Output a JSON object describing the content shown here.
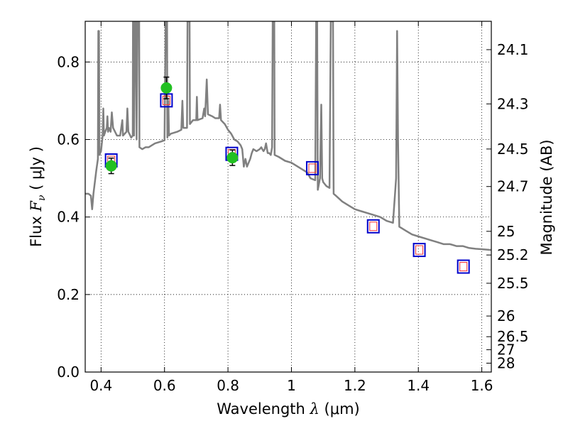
{
  "chart_data": {
    "type": "scatter",
    "xlabel_prefix": "Wavelength",
    "xlabel_symbol": "λ",
    "xlabel_units": "(μm)",
    "ylabel_prefix": "Flux",
    "ylabel_symbol": "F",
    "ylabel_sub": "ν",
    "ylabel_units": "( μJy )",
    "y2label": "Magnitude (AB)",
    "xlim": [
      0.35,
      1.63
    ],
    "ylim": [
      0.0,
      0.905
    ],
    "x_ticks": [
      {
        "value": 0.4,
        "label": "0.4"
      },
      {
        "value": 0.6,
        "label": "0.6"
      },
      {
        "value": 0.8,
        "label": "0.8"
      },
      {
        "value": 1.0,
        "label": "1"
      },
      {
        "value": 1.2,
        "label": "1.2"
      },
      {
        "value": 1.4,
        "label": "1.4"
      },
      {
        "value": 1.6,
        "label": "1.6"
      }
    ],
    "y_ticks": [
      {
        "value": 0.0,
        "label": "0.0"
      },
      {
        "value": 0.2,
        "label": "0.2"
      },
      {
        "value": 0.4,
        "label": "0.4"
      },
      {
        "value": 0.6,
        "label": "0.6"
      },
      {
        "value": 0.8,
        "label": "0.8"
      }
    ],
    "mag_ticks": [
      {
        "value": 24.1,
        "label": "24.1"
      },
      {
        "value": 24.3,
        "label": "24.3"
      },
      {
        "value": 24.5,
        "label": "24.5"
      },
      {
        "value": 24.7,
        "label": "24.7"
      },
      {
        "value": 25.0,
        "label": "25"
      },
      {
        "value": 25.2,
        "label": "25.2"
      },
      {
        "value": 25.5,
        "label": "25.5"
      },
      {
        "value": 26.0,
        "label": "26"
      },
      {
        "value": 26.5,
        "label": "26.5"
      },
      {
        "value": 27.0,
        "label": "27"
      },
      {
        "value": 28.0,
        "label": "28"
      }
    ],
    "grid": true,
    "colors": {
      "sed": "#808080",
      "observed": "#22c022",
      "errorbar": "#000000",
      "model_box": "#0000cc",
      "model_inner": "#ff3333"
    },
    "sed_spectrum": [
      [
        0.35,
        0.46
      ],
      [
        0.36,
        0.46
      ],
      [
        0.368,
        0.455
      ],
      [
        0.372,
        0.42
      ],
      [
        0.376,
        0.46
      ],
      [
        0.385,
        0.52
      ],
      [
        0.39,
        0.55
      ],
      [
        0.3915,
        0.88
      ],
      [
        0.3935,
        0.88
      ],
      [
        0.395,
        0.56
      ],
      [
        0.4,
        0.57
      ],
      [
        0.405,
        0.61
      ],
      [
        0.407,
        0.68
      ],
      [
        0.409,
        0.61
      ],
      [
        0.413,
        0.62
      ],
      [
        0.418,
        0.63
      ],
      [
        0.42,
        0.66
      ],
      [
        0.422,
        0.62
      ],
      [
        0.425,
        0.63
      ],
      [
        0.43,
        0.62
      ],
      [
        0.434,
        0.67
      ],
      [
        0.438,
        0.63
      ],
      [
        0.45,
        0.61
      ],
      [
        0.46,
        0.61
      ],
      [
        0.467,
        0.65
      ],
      [
        0.469,
        0.61
      ],
      [
        0.48,
        0.62
      ],
      [
        0.483,
        0.68
      ],
      [
        0.486,
        0.62
      ],
      [
        0.495,
        0.605
      ],
      [
        0.5,
        0.61
      ],
      [
        0.5005,
        0.905
      ],
      [
        0.503,
        0.905
      ],
      [
        0.504,
        0.61
      ],
      [
        0.508,
        0.905
      ],
      [
        0.511,
        0.905
      ],
      [
        0.512,
        0.6
      ],
      [
        0.515,
        0.905
      ],
      [
        0.52,
        0.905
      ],
      [
        0.521,
        0.58
      ],
      [
        0.53,
        0.575
      ],
      [
        0.54,
        0.58
      ],
      [
        0.55,
        0.58
      ],
      [
        0.56,
        0.585
      ],
      [
        0.57,
        0.59
      ],
      [
        0.59,
        0.595
      ],
      [
        0.6,
        0.598
      ],
      [
        0.6035,
        0.905
      ],
      [
        0.608,
        0.905
      ],
      [
        0.609,
        0.605
      ],
      [
        0.612,
        0.7
      ],
      [
        0.614,
        0.61
      ],
      [
        0.62,
        0.615
      ],
      [
        0.64,
        0.62
      ],
      [
        0.653,
        0.625
      ],
      [
        0.6563,
        0.7
      ],
      [
        0.659,
        0.63
      ],
      [
        0.671,
        0.63
      ],
      [
        0.6725,
        0.905
      ],
      [
        0.678,
        0.905
      ],
      [
        0.679,
        0.905
      ],
      [
        0.68,
        0.64
      ],
      [
        0.69,
        0.65
      ],
      [
        0.7,
        0.65
      ],
      [
        0.702,
        0.71
      ],
      [
        0.704,
        0.65
      ],
      [
        0.72,
        0.655
      ],
      [
        0.725,
        0.68
      ],
      [
        0.728,
        0.66
      ],
      [
        0.733,
        0.755
      ],
      [
        0.737,
        0.665
      ],
      [
        0.75,
        0.66
      ],
      [
        0.76,
        0.655
      ],
      [
        0.772,
        0.655
      ],
      [
        0.775,
        0.69
      ],
      [
        0.778,
        0.65
      ],
      [
        0.79,
        0.64
      ],
      [
        0.8,
        0.625
      ],
      [
        0.81,
        0.615
      ],
      [
        0.82,
        0.6
      ],
      [
        0.83,
        0.595
      ],
      [
        0.84,
        0.585
      ],
      [
        0.845,
        0.575
      ],
      [
        0.85,
        0.53
      ],
      [
        0.855,
        0.55
      ],
      [
        0.86,
        0.53
      ],
      [
        0.87,
        0.55
      ],
      [
        0.875,
        0.565
      ],
      [
        0.88,
        0.575
      ],
      [
        0.89,
        0.57
      ],
      [
        0.9,
        0.575
      ],
      [
        0.905,
        0.58
      ],
      [
        0.908,
        0.575
      ],
      [
        0.912,
        0.57
      ],
      [
        0.916,
        0.575
      ],
      [
        0.92,
        0.59
      ],
      [
        0.925,
        0.565
      ],
      [
        0.93,
        0.565
      ],
      [
        0.935,
        0.56
      ],
      [
        0.939,
        0.58
      ],
      [
        0.941,
        0.905
      ],
      [
        0.946,
        0.905
      ],
      [
        0.947,
        0.56
      ],
      [
        0.96,
        0.555
      ],
      [
        0.98,
        0.545
      ],
      [
        1.0,
        0.54
      ],
      [
        1.02,
        0.53
      ],
      [
        1.04,
        0.52
      ],
      [
        1.05,
        0.515
      ],
      [
        1.06,
        0.5
      ],
      [
        1.075,
        0.495
      ],
      [
        1.078,
        0.905
      ],
      [
        1.081,
        0.905
      ],
      [
        1.083,
        0.47
      ],
      [
        1.09,
        0.5
      ],
      [
        1.094,
        0.69
      ],
      [
        1.097,
        0.5
      ],
      [
        1.1,
        0.49
      ],
      [
        1.11,
        0.48
      ],
      [
        1.12,
        0.475
      ],
      [
        1.124,
        0.905
      ],
      [
        1.131,
        0.905
      ],
      [
        1.133,
        0.46
      ],
      [
        1.14,
        0.455
      ],
      [
        1.16,
        0.44
      ],
      [
        1.18,
        0.43
      ],
      [
        1.2,
        0.42
      ],
      [
        1.22,
        0.415
      ],
      [
        1.24,
        0.41
      ],
      [
        1.26,
        0.405
      ],
      [
        1.28,
        0.4
      ],
      [
        1.3,
        0.39
      ],
      [
        1.32,
        0.385
      ],
      [
        1.33,
        0.5
      ],
      [
        1.333,
        0.88
      ],
      [
        1.336,
        0.6
      ],
      [
        1.34,
        0.375
      ],
      [
        1.36,
        0.365
      ],
      [
        1.38,
        0.355
      ],
      [
        1.4,
        0.35
      ],
      [
        1.42,
        0.345
      ],
      [
        1.44,
        0.34
      ],
      [
        1.46,
        0.335
      ],
      [
        1.48,
        0.33
      ],
      [
        1.5,
        0.33
      ],
      [
        1.52,
        0.325
      ],
      [
        1.54,
        0.325
      ],
      [
        1.56,
        0.32
      ],
      [
        1.58,
        0.318
      ],
      [
        1.6,
        0.317
      ],
      [
        1.63,
        0.315
      ]
    ],
    "model_photometry": [
      {
        "x": 0.432,
        "y": 0.546
      },
      {
        "x": 0.606,
        "y": 0.701
      },
      {
        "x": 0.812,
        "y": 0.563
      },
      {
        "x": 1.066,
        "y": 0.526
      },
      {
        "x": 1.258,
        "y": 0.376
      },
      {
        "x": 1.403,
        "y": 0.315
      },
      {
        "x": 1.542,
        "y": 0.272
      }
    ],
    "observed_photometry": [
      {
        "x": 0.432,
        "y": 0.532,
        "yerr": 0.02
      },
      {
        "x": 0.606,
        "y": 0.733,
        "yerr": 0.028
      },
      {
        "x": 0.814,
        "y": 0.553,
        "yerr": 0.02
      }
    ]
  }
}
